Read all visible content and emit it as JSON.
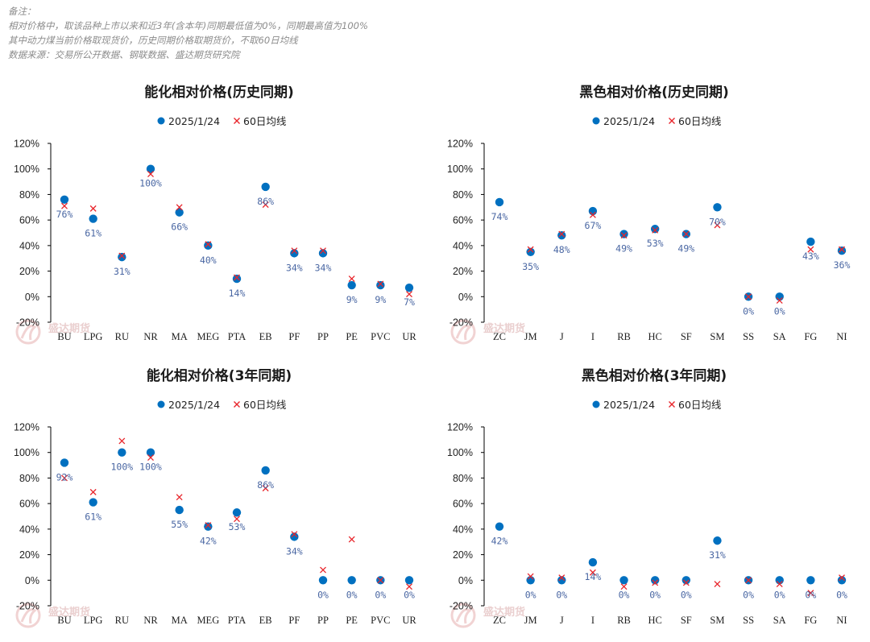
{
  "notes": [
    "备注：",
    "相对价格中，取该品种上市以来和近3年(含本年)同期最低值为0%，同期最高值为100%",
    "其中动力煤当前价格取现货价，历史同期价格取期货价，不取60日均线",
    "数据来源：交易所公开数据、钢联数据、盛达期货研究院"
  ],
  "watermark": "盛达期货",
  "colors": {
    "point": "#0070C0",
    "cross": "#E8252B",
    "label": "#4a67a3",
    "axis": "#000000"
  },
  "chart_data": [
    {
      "type": "scatter",
      "title": "能化相对价格(历史同期)",
      "legend": [
        "2025/1/24",
        "60日均线"
      ],
      "legend_position": "top",
      "ylim": [
        -0.2,
        1.2
      ],
      "yticks": [
        "-20%",
        "0%",
        "20%",
        "40%",
        "60%",
        "80%",
        "100%",
        "120%"
      ],
      "categories": [
        "BU",
        "LPG",
        "RU",
        "NR",
        "MA",
        "MEG",
        "PTA",
        "EB",
        "PF",
        "PP",
        "PE",
        "PVC",
        "UR"
      ],
      "series": [
        {
          "name": "2025/1/24",
          "marker": "circle",
          "values": [
            0.76,
            0.61,
            0.31,
            1.0,
            0.66,
            0.4,
            0.14,
            0.86,
            0.34,
            0.34,
            0.09,
            0.09,
            0.07
          ]
        },
        {
          "name": "60日均线",
          "marker": "x",
          "values": [
            0.71,
            0.69,
            0.32,
            0.96,
            0.7,
            0.41,
            0.15,
            0.72,
            0.36,
            0.36,
            0.14,
            0.1,
            0.02
          ]
        }
      ],
      "labels": [
        "76%",
        "61%",
        "31%",
        "100%",
        "66%",
        "40%",
        "14%",
        "86%",
        "34%",
        "34%",
        "9%",
        "9%",
        "7%"
      ]
    },
    {
      "type": "scatter",
      "title": "黑色相对价格(历史同期)",
      "legend": [
        "2025/1/24",
        "60日均线"
      ],
      "legend_position": "top",
      "ylim": [
        -0.2,
        1.2
      ],
      "yticks": [
        "-20%",
        "0%",
        "20%",
        "40%",
        "60%",
        "80%",
        "100%",
        "120%"
      ],
      "categories": [
        "ZC",
        "JM",
        "J",
        "I",
        "RB",
        "HC",
        "SF",
        "SM",
        "SS",
        "SA",
        "FG",
        "NI"
      ],
      "series": [
        {
          "name": "2025/1/24",
          "marker": "circle",
          "values": [
            0.74,
            0.35,
            0.48,
            0.67,
            0.49,
            0.53,
            0.49,
            0.7,
            0.0,
            0.0,
            0.43,
            0.36
          ]
        },
        {
          "name": "60日均线",
          "marker": "x",
          "values": [
            null,
            0.37,
            0.49,
            0.64,
            0.48,
            0.52,
            0.49,
            0.56,
            0.0,
            -0.03,
            0.37,
            0.37
          ]
        }
      ],
      "labels": [
        "74%",
        "35%",
        "48%",
        "67%",
        "49%",
        "53%",
        "49%",
        "70%",
        "0%",
        "0%",
        "43%",
        "36%"
      ]
    },
    {
      "type": "scatter",
      "title": "能化相对价格(3年同期)",
      "legend": [
        "2025/1/24",
        "60日均线"
      ],
      "legend_position": "top",
      "ylim": [
        -0.2,
        1.2
      ],
      "yticks": [
        "-20%",
        "0%",
        "20%",
        "40%",
        "60%",
        "80%",
        "100%",
        "120%"
      ],
      "categories": [
        "BU",
        "LPG",
        "RU",
        "NR",
        "MA",
        "MEG",
        "PTA",
        "EB",
        "PF",
        "PP",
        "PE",
        "PVC",
        "UR"
      ],
      "series": [
        {
          "name": "2025/1/24",
          "marker": "circle",
          "values": [
            0.92,
            0.61,
            1.0,
            1.0,
            0.55,
            0.42,
            0.53,
            0.86,
            0.34,
            0.0,
            0.0,
            0.0,
            0.0
          ]
        },
        {
          "name": "60日均线",
          "marker": "x",
          "values": [
            0.8,
            0.69,
            1.09,
            0.96,
            0.65,
            0.43,
            0.48,
            0.72,
            0.36,
            0.08,
            0.32,
            0.0,
            -0.05
          ]
        }
      ],
      "labels": [
        "92%",
        "61%",
        "100%",
        "100%",
        "55%",
        "42%",
        "53%",
        "86%",
        "34%",
        "0%",
        "0%",
        "0%",
        "0%"
      ]
    },
    {
      "type": "scatter",
      "title": "黑色相对价格(3年同期)",
      "legend": [
        "2025/1/24",
        "60日均线"
      ],
      "legend_position": "top",
      "ylim": [
        -0.2,
        1.2
      ],
      "yticks": [
        "-20%",
        "0%",
        "20%",
        "40%",
        "60%",
        "80%",
        "100%",
        "120%"
      ],
      "categories": [
        "ZC",
        "JM",
        "J",
        "I",
        "RB",
        "HC",
        "SF",
        "SM",
        "SS",
        "SA",
        "FG",
        "NI"
      ],
      "series": [
        {
          "name": "2025/1/24",
          "marker": "circle",
          "values": [
            0.42,
            0.0,
            0.0,
            0.14,
            0.0,
            0.0,
            0.0,
            0.31,
            0.0,
            0.0,
            0.0,
            0.0
          ]
        },
        {
          "name": "60日均线",
          "marker": "x",
          "values": [
            null,
            0.03,
            0.02,
            0.06,
            -0.05,
            -0.02,
            -0.02,
            -0.03,
            0.0,
            -0.03,
            -0.1,
            0.02
          ]
        }
      ],
      "labels": [
        "42%",
        "0%",
        "0%",
        "14%",
        "0%",
        "0%",
        "0%",
        "31%",
        "0%",
        "0%",
        "0%",
        "0%"
      ]
    }
  ]
}
